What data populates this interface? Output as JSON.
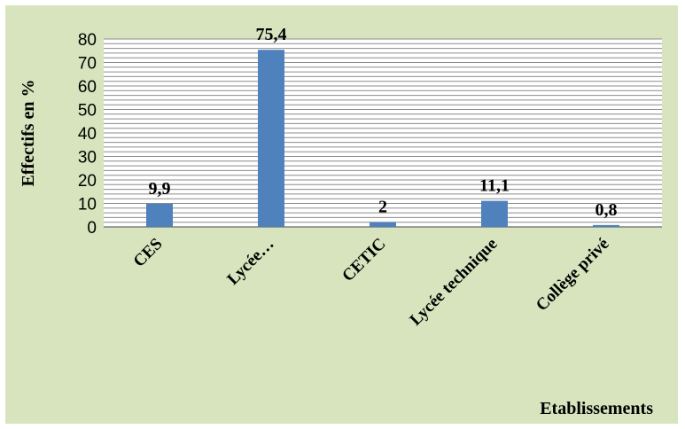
{
  "chart_data": {
    "type": "bar",
    "categories": [
      "CES",
      "Lycée…",
      "CETIC",
      "Lycée technique",
      "Collège privé"
    ],
    "values": [
      9.9,
      75.4,
      2,
      11.1,
      0.8
    ],
    "data_labels": [
      "9,9",
      "75,4",
      "2",
      "11,1",
      "0,8"
    ],
    "title": "",
    "xlabel": "Etablissements",
    "ylabel": "Effectifs en %",
    "ylim": [
      0,
      80
    ],
    "yticks": [
      0,
      10,
      20,
      30,
      40,
      50,
      60,
      70,
      80
    ],
    "grid": true,
    "legend": "none"
  },
  "colors": {
    "background": "#d7e4bd",
    "bar": "#4f81bd",
    "grid": "#8c8c8c"
  }
}
